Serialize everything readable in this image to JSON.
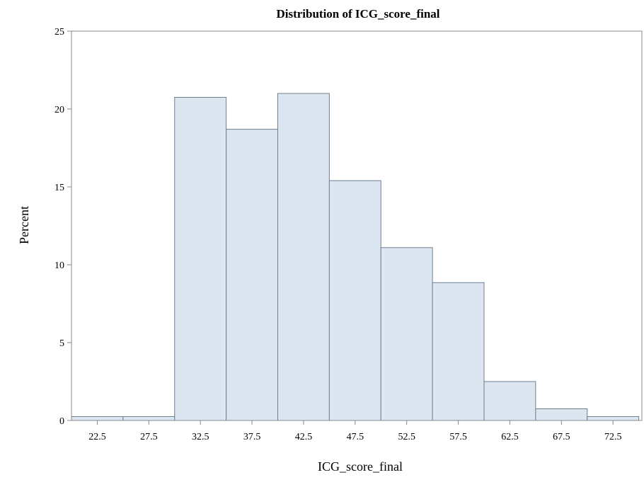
{
  "chart_data": {
    "type": "bar",
    "title": "Distribution of ICG_score_final",
    "xlabel": "ICG_score_final",
    "ylabel": "Percent",
    "categories": [
      "22.5",
      "27.5",
      "32.5",
      "37.5",
      "42.5",
      "47.5",
      "52.5",
      "57.5",
      "62.5",
      "67.5",
      "72.5"
    ],
    "bin_width": 5,
    "values": [
      0.25,
      0.25,
      20.75,
      18.7,
      21.0,
      15.4,
      11.1,
      8.85,
      2.5,
      0.75,
      0.25
    ],
    "ylim": [
      0,
      25
    ],
    "yticks": [
      "0",
      "5",
      "10",
      "15",
      "20",
      "25"
    ],
    "grid": false,
    "legend": "none",
    "colors": {
      "bar_fill": "#dce6f1",
      "bar_stroke": "#6f7f8f",
      "axis": "#888888",
      "text": "#000000"
    }
  }
}
